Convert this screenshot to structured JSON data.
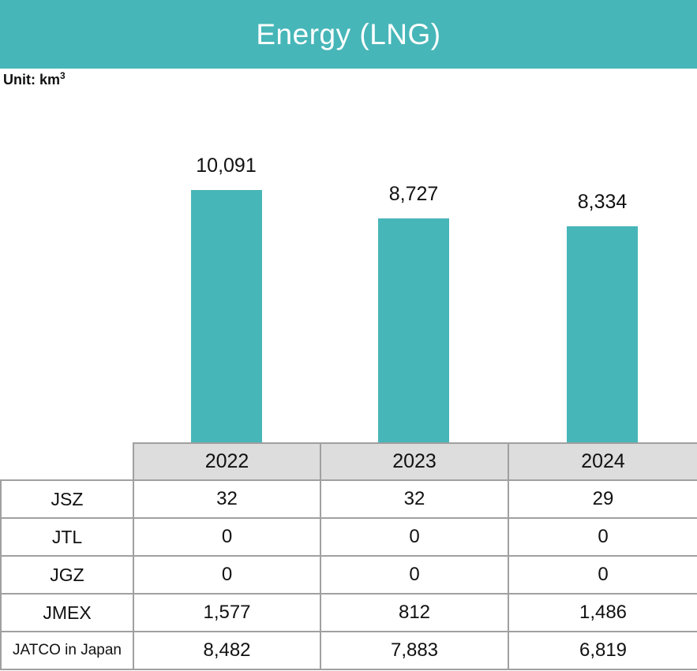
{
  "header": {
    "title": "Energy (LNG)"
  },
  "unit": {
    "prefix": "Unit: km",
    "exponent": "3"
  },
  "chart_data": {
    "type": "bar",
    "title": "Energy (LNG)",
    "unit": "km³",
    "categories": [
      "2022",
      "2023",
      "2024"
    ],
    "values": [
      10091,
      8727,
      8334
    ],
    "value_labels": [
      "10,091",
      "8,727",
      "8,334"
    ],
    "xlabel": "",
    "ylabel": "Unit: km³",
    "ylim": [
      -2030,
      10500
    ],
    "grid": false,
    "legend": false,
    "bar_color": "#47b6b8",
    "data_labels_position": "above-bars"
  },
  "table": {
    "col_headers": [
      "2022",
      "2023",
      "2024"
    ],
    "rows": [
      {
        "label": "JSZ",
        "values": [
          "32",
          "32",
          "29"
        ]
      },
      {
        "label": "JTL",
        "values": [
          "0",
          "0",
          "0"
        ]
      },
      {
        "label": "JGZ",
        "values": [
          "0",
          "0",
          "0"
        ]
      },
      {
        "label": "JMEX",
        "values": [
          "1,577",
          "812",
          "1,486"
        ]
      },
      {
        "label": "JATCO in Japan",
        "values": [
          "8,482",
          "7,883",
          "6,819"
        ]
      }
    ]
  },
  "colors": {
    "accent_teal": "#47b6b8",
    "table_header_gray": "#dddddd",
    "table_border_gray": "#a0a0a0",
    "text": "#111111"
  }
}
